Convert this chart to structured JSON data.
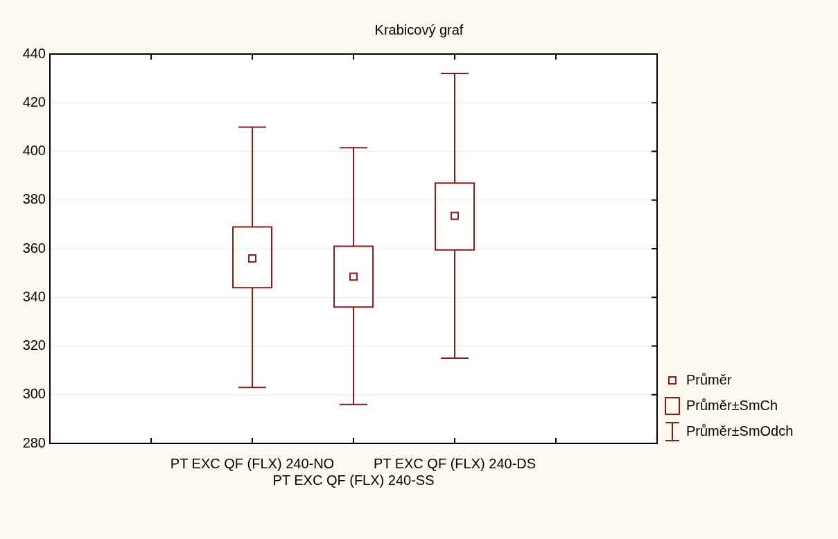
{
  "chart_data": {
    "type": "box",
    "title": "Krabicový graf",
    "categories": [
      null,
      "PT EXC QF (FLX) 240-NO",
      "PT EXC QF (FLX) 240-SS",
      "PT EXC QF (FLX) 240-DS",
      null
    ],
    "boxes": [
      null,
      {
        "low": 303,
        "q1": 344,
        "q3": 369,
        "high": 410,
        "mean": 356
      },
      {
        "low": 296,
        "q1": 336,
        "q3": 361,
        "high": 401.5,
        "mean": 348.5
      },
      {
        "low": 315,
        "q1": 359.5,
        "q3": 387,
        "high": 432,
        "mean": 373.5
      },
      null
    ],
    "color": "#8e1b1b",
    "ylim": [
      280,
      440
    ],
    "yticks": [
      280,
      300,
      320,
      340,
      360,
      380,
      400,
      420,
      440
    ],
    "grid": "y",
    "annotations": [
      "Průměr",
      "Průměr±SmCh",
      "Průměr±SmOdch"
    ]
  }
}
